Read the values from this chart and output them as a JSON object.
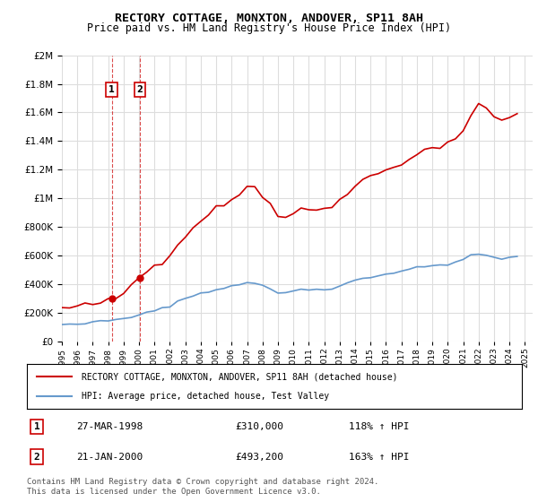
{
  "title": "RECTORY COTTAGE, MONXTON, ANDOVER, SP11 8AH",
  "subtitle": "Price paid vs. HM Land Registry's House Price Index (HPI)",
  "legend_line1": "RECTORY COTTAGE, MONXTON, ANDOVER, SP11 8AH (detached house)",
  "legend_line2": "HPI: Average price, detached house, Test Valley",
  "transactions": [
    {
      "num": 1,
      "date": "27-MAR-1998",
      "price": "£310,000",
      "hpi": "118% ↑ HPI",
      "year": 1998.23
    },
    {
      "num": 2,
      "date": "21-JAN-2000",
      "price": "£493,200",
      "hpi": "163% ↑ HPI",
      "year": 2000.05
    }
  ],
  "footer": "Contains HM Land Registry data © Crown copyright and database right 2024.\nThis data is licensed under the Open Government Licence v3.0.",
  "red_color": "#cc0000",
  "blue_color": "#6699cc",
  "marker_color": "#cc0000",
  "background_color": "#ffffff",
  "grid_color": "#dddddd",
  "ylim": [
    0,
    2000000
  ],
  "xlim_start": 1995,
  "xlim_end": 2025.5,
  "sale1_x": 1998.23,
  "sale1_y": 310000,
  "sale2_x": 2000.05,
  "sale2_y": 493200
}
